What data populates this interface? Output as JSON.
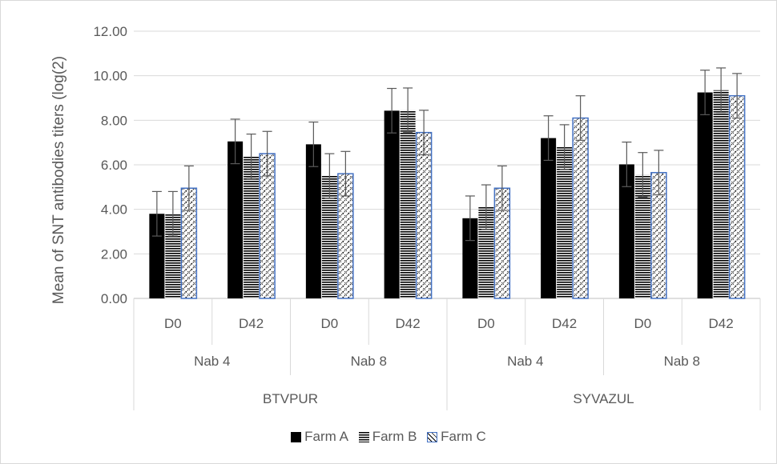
{
  "chart_data": {
    "type": "bar",
    "ylabel": "Mean of SNT antibodies titers (log(2)",
    "ylim": [
      0,
      12
    ],
    "yticks": [
      "0.00",
      "2.00",
      "4.00",
      "6.00",
      "8.00",
      "10.00",
      "12.00"
    ],
    "categories": [
      "D0",
      "D42",
      "D0",
      "D42",
      "D0",
      "D42",
      "D0",
      "D42"
    ],
    "category_groups_level2": [
      "Nab 4",
      "Nab 8",
      "Nab 4",
      "Nab 8"
    ],
    "category_groups_level3": [
      "BTVPUR",
      "SYVAZUL"
    ],
    "series": [
      {
        "name": "Farm A",
        "values": [
          3.8,
          7.05,
          6.92,
          8.43,
          3.6,
          7.2,
          6.02,
          9.25
        ],
        "errors": [
          1.0,
          1.0,
          1.0,
          1.0,
          1.0,
          1.0,
          1.0,
          1.0
        ]
      },
      {
        "name": "Farm B",
        "values": [
          3.8,
          6.38,
          5.5,
          8.45,
          4.1,
          6.8,
          5.55,
          9.35
        ],
        "errors": [
          1.0,
          1.0,
          1.0,
          1.0,
          1.0,
          1.0,
          1.0,
          1.0
        ]
      },
      {
        "name": "Farm C",
        "values": [
          4.95,
          6.5,
          5.6,
          7.45,
          4.95,
          8.1,
          5.65,
          9.1
        ],
        "errors": [
          1.0,
          1.0,
          1.0,
          1.0,
          1.0,
          1.0,
          1.0,
          1.0
        ]
      }
    ],
    "legend_position": "bottom",
    "grid": true,
    "colors": {
      "farm_a": "#000000",
      "farm_b": "#000000",
      "farm_c_border": "#4472c4",
      "gridline": "#d9d9d9",
      "text": "#595959"
    }
  }
}
